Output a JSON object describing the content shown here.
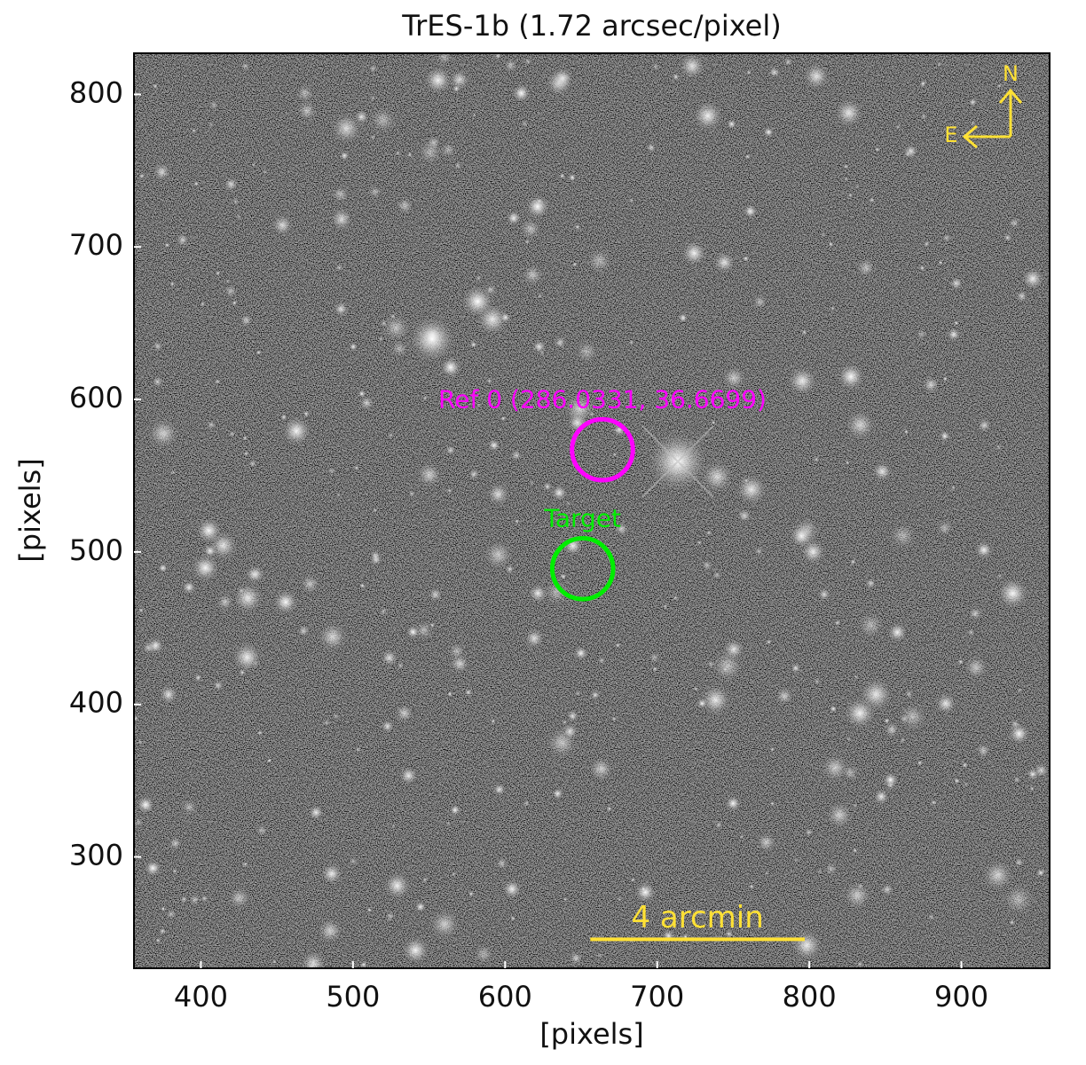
{
  "chart_data": {
    "type": "image",
    "title": "TrES-1b  (1.72 arcsec/pixel)",
    "xlabel": "[pixels]",
    "ylabel": "[pixels]",
    "xlim": [
      356,
      958
    ],
    "ylim": [
      227,
      827
    ],
    "xticks": [
      400,
      500,
      600,
      700,
      800,
      900
    ],
    "yticks": [
      300,
      400,
      500,
      600,
      700,
      800
    ],
    "markers": [
      {
        "label": "Ref 0 (286.0331, 36.6699)",
        "x": 664,
        "y": 567,
        "radius": 20,
        "color": "#ff00ff"
      },
      {
        "label": "Target",
        "x": 651,
        "y": 489,
        "radius": 20,
        "color": "#00ee00"
      }
    ],
    "scale_bar": {
      "label": "4 arcmin",
      "x": [
        656,
        797
      ],
      "y": 246,
      "color": "#ffe135"
    },
    "compass": {
      "north": "N",
      "east": "E",
      "color": "#ffe135"
    }
  }
}
